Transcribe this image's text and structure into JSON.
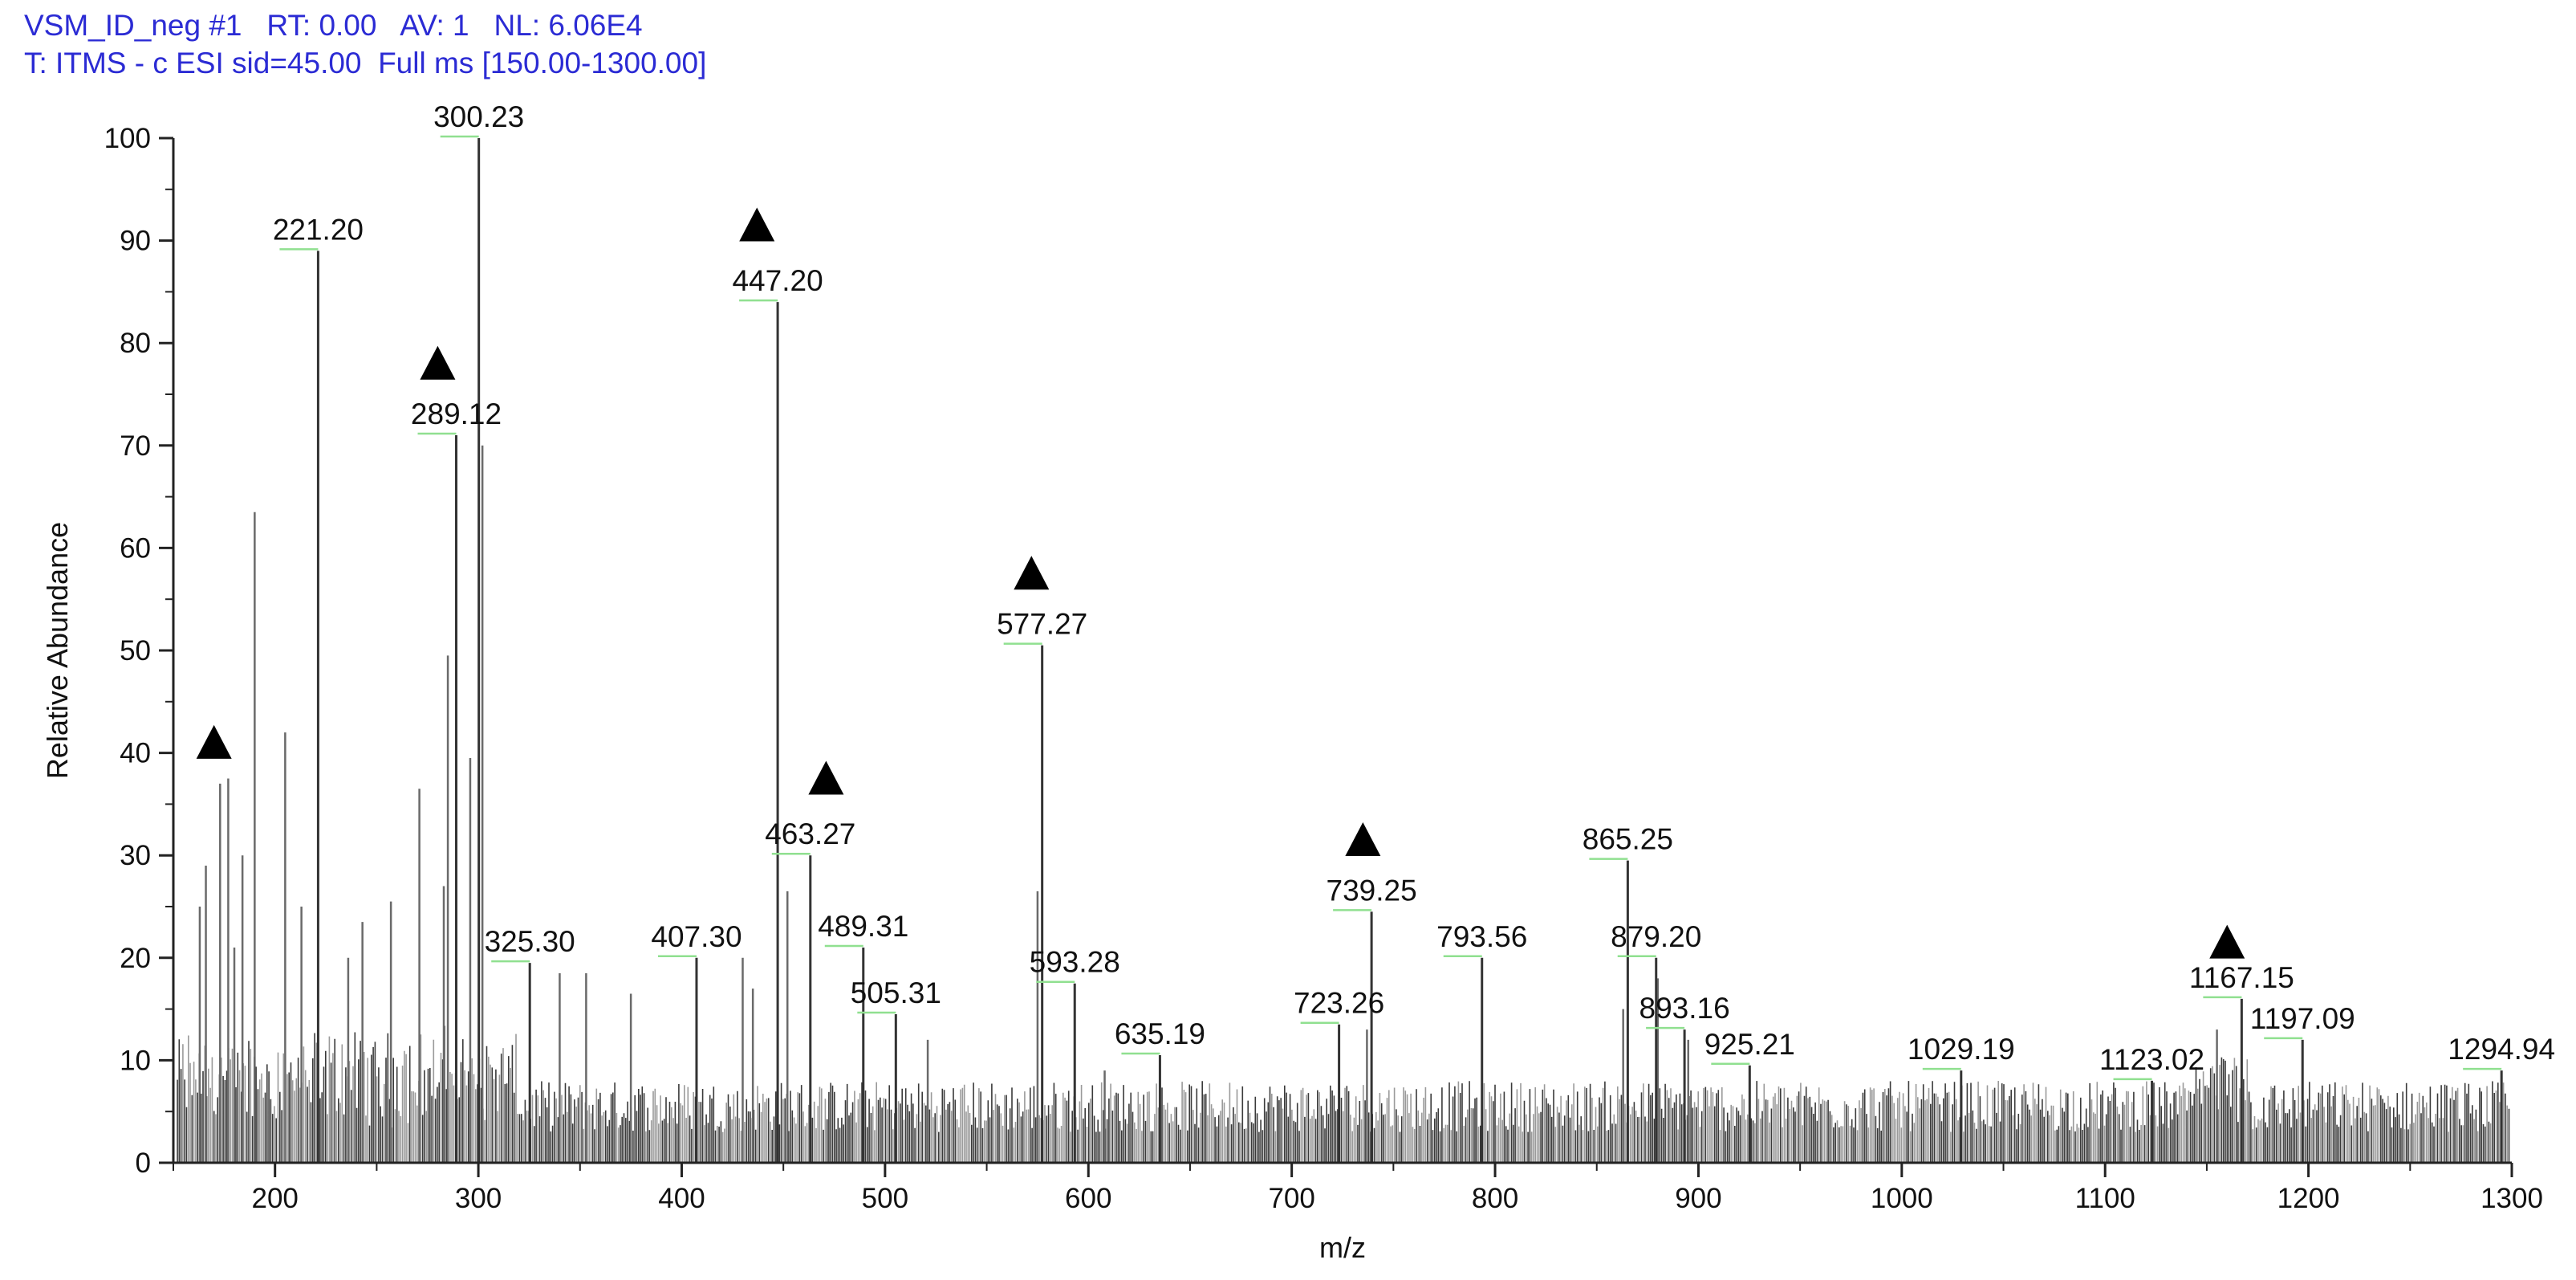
{
  "header": {
    "line1": "VSM_ID_neg #1   RT: 0.00   AV: 1   NL: 6.06E4",
    "line2": "T: ITMS - c ESI sid=45.00  Full ms [150.00-1300.00]"
  },
  "chart_data": {
    "type": "bar",
    "title": "",
    "xlabel": "m/z",
    "ylabel": "Relative Abundance",
    "xlim": [
      150,
      1300
    ],
    "ylim": [
      0,
      100
    ],
    "x_ticks": [
      200,
      300,
      400,
      500,
      600,
      700,
      800,
      900,
      1000,
      1100,
      1200,
      1300
    ],
    "y_ticks": [
      0,
      10,
      20,
      30,
      40,
      50,
      60,
      70,
      80,
      90,
      100
    ],
    "grid": false,
    "colors": {
      "peak": "#333333",
      "label_underline": "#90e090",
      "header": "#2b2bd4",
      "marker": "#000000"
    },
    "labeled_peaks": [
      {
        "label": "221.20",
        "mz": 221.2,
        "intensity": 89
      },
      {
        "label": "289.12",
        "mz": 289.12,
        "intensity": 71
      },
      {
        "label": "300.23",
        "mz": 300.23,
        "intensity": 100
      },
      {
        "label": "325.30",
        "mz": 325.3,
        "intensity": 19.5
      },
      {
        "label": "407.30",
        "mz": 407.3,
        "intensity": 20
      },
      {
        "label": "447.20",
        "mz": 447.2,
        "intensity": 84
      },
      {
        "label": "463.27",
        "mz": 463.27,
        "intensity": 30
      },
      {
        "label": "489.31",
        "mz": 489.31,
        "intensity": 21
      },
      {
        "label": "505.31",
        "mz": 505.31,
        "intensity": 14.5
      },
      {
        "label": "577.27",
        "mz": 577.27,
        "intensity": 50.5
      },
      {
        "label": "593.28",
        "mz": 593.28,
        "intensity": 17.5
      },
      {
        "label": "635.19",
        "mz": 635.19,
        "intensity": 10.5
      },
      {
        "label": "723.26",
        "mz": 723.26,
        "intensity": 13.5
      },
      {
        "label": "739.25",
        "mz": 739.25,
        "intensity": 24.5
      },
      {
        "label": "793.56",
        "mz": 793.56,
        "intensity": 20
      },
      {
        "label": "865.25",
        "mz": 865.25,
        "intensity": 29.5
      },
      {
        "label": "879.20",
        "mz": 879.2,
        "intensity": 20
      },
      {
        "label": "893.16",
        "mz": 893.16,
        "intensity": 13
      },
      {
        "label": "925.21",
        "mz": 925.21,
        "intensity": 9.5
      },
      {
        "label": "1029.19",
        "mz": 1029.19,
        "intensity": 9
      },
      {
        "label": "1123.02",
        "mz": 1123.02,
        "intensity": 8
      },
      {
        "label": "1167.15",
        "mz": 1167.15,
        "intensity": 16
      },
      {
        "label": "1197.09",
        "mz": 1197.09,
        "intensity": 12
      },
      {
        "label": "1294.94",
        "mz": 1294.94,
        "intensity": 9
      }
    ],
    "other_peaks": [
      {
        "mz": 163,
        "intensity": 25
      },
      {
        "mz": 166,
        "intensity": 29
      },
      {
        "mz": 173,
        "intensity": 37
      },
      {
        "mz": 177,
        "intensity": 37.5
      },
      {
        "mz": 180,
        "intensity": 21
      },
      {
        "mz": 184,
        "intensity": 30
      },
      {
        "mz": 190,
        "intensity": 63.5
      },
      {
        "mz": 205,
        "intensity": 42
      },
      {
        "mz": 213,
        "intensity": 25
      },
      {
        "mz": 236,
        "intensity": 20
      },
      {
        "mz": 243,
        "intensity": 23.5
      },
      {
        "mz": 257,
        "intensity": 25.5
      },
      {
        "mz": 271,
        "intensity": 36.5
      },
      {
        "mz": 283,
        "intensity": 27
      },
      {
        "mz": 285,
        "intensity": 49.5
      },
      {
        "mz": 296,
        "intensity": 39.5
      },
      {
        "mz": 302,
        "intensity": 70
      },
      {
        "mz": 340,
        "intensity": 18.5
      },
      {
        "mz": 353,
        "intensity": 18.5
      },
      {
        "mz": 375,
        "intensity": 16.5
      },
      {
        "mz": 430,
        "intensity": 20
      },
      {
        "mz": 435,
        "intensity": 17
      },
      {
        "mz": 452,
        "intensity": 26.5
      },
      {
        "mz": 521,
        "intensity": 12
      },
      {
        "mz": 575,
        "intensity": 26.5
      },
      {
        "mz": 608,
        "intensity": 9
      },
      {
        "mz": 737,
        "intensity": 13
      },
      {
        "mz": 863,
        "intensity": 15
      },
      {
        "mz": 880,
        "intensity": 18
      },
      {
        "mz": 895,
        "intensity": 12
      },
      {
        "mz": 1155,
        "intensity": 13
      }
    ],
    "triangle_markers": [
      {
        "mz": 170,
        "intensity": 41
      },
      {
        "mz": 280,
        "intensity": 78
      },
      {
        "mz": 437,
        "intensity": 91.5
      },
      {
        "mz": 471,
        "intensity": 37.5
      },
      {
        "mz": 572,
        "intensity": 57.5
      },
      {
        "mz": 735,
        "intensity": 31.5
      },
      {
        "mz": 1160,
        "intensity": 21.5
      }
    ]
  }
}
